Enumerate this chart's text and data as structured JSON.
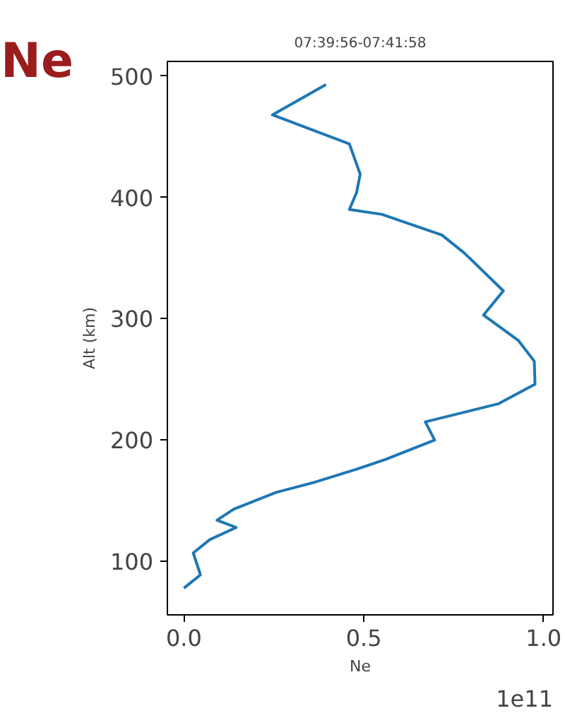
{
  "chart_data": {
    "type": "line",
    "title": "07:39:56-07:41:58",
    "xlabel": "Ne",
    "ylabel": "Alt (km)",
    "annotations": [
      "Ne",
      "1e11"
    ],
    "xlim": [
      -0.046,
      1.026
    ],
    "xticks": [
      {
        "value": 0,
        "label": "0.0"
      },
      0.5,
      {
        "value": 1,
        "label": "1.0"
      }
    ],
    "ylim": [
      56,
      512
    ],
    "yticks": [
      100,
      200,
      300,
      400,
      500
    ],
    "grid": false,
    "series": [
      {
        "color": "#1f77b4",
        "x": [
          0.395,
          0.246,
          0.46,
          0.49,
          0.48,
          0.46,
          0.55,
          0.717,
          0.78,
          0.888,
          0.833,
          0.93,
          0.974,
          0.976,
          0.875,
          0.671,
          0.697,
          0.56,
          0.48,
          0.36,
          0.257,
          0.138,
          0.092,
          0.145,
          0.072,
          0.026,
          0.046,
          0.0
        ],
        "values": [
          493,
          468,
          444,
          419,
          404,
          390,
          386,
          369,
          354,
          323,
          303,
          282,
          265,
          246,
          230,
          215,
          200,
          184,
          176,
          165,
          157,
          143,
          134,
          128,
          118,
          107,
          89,
          78
        ]
      }
    ]
  }
}
